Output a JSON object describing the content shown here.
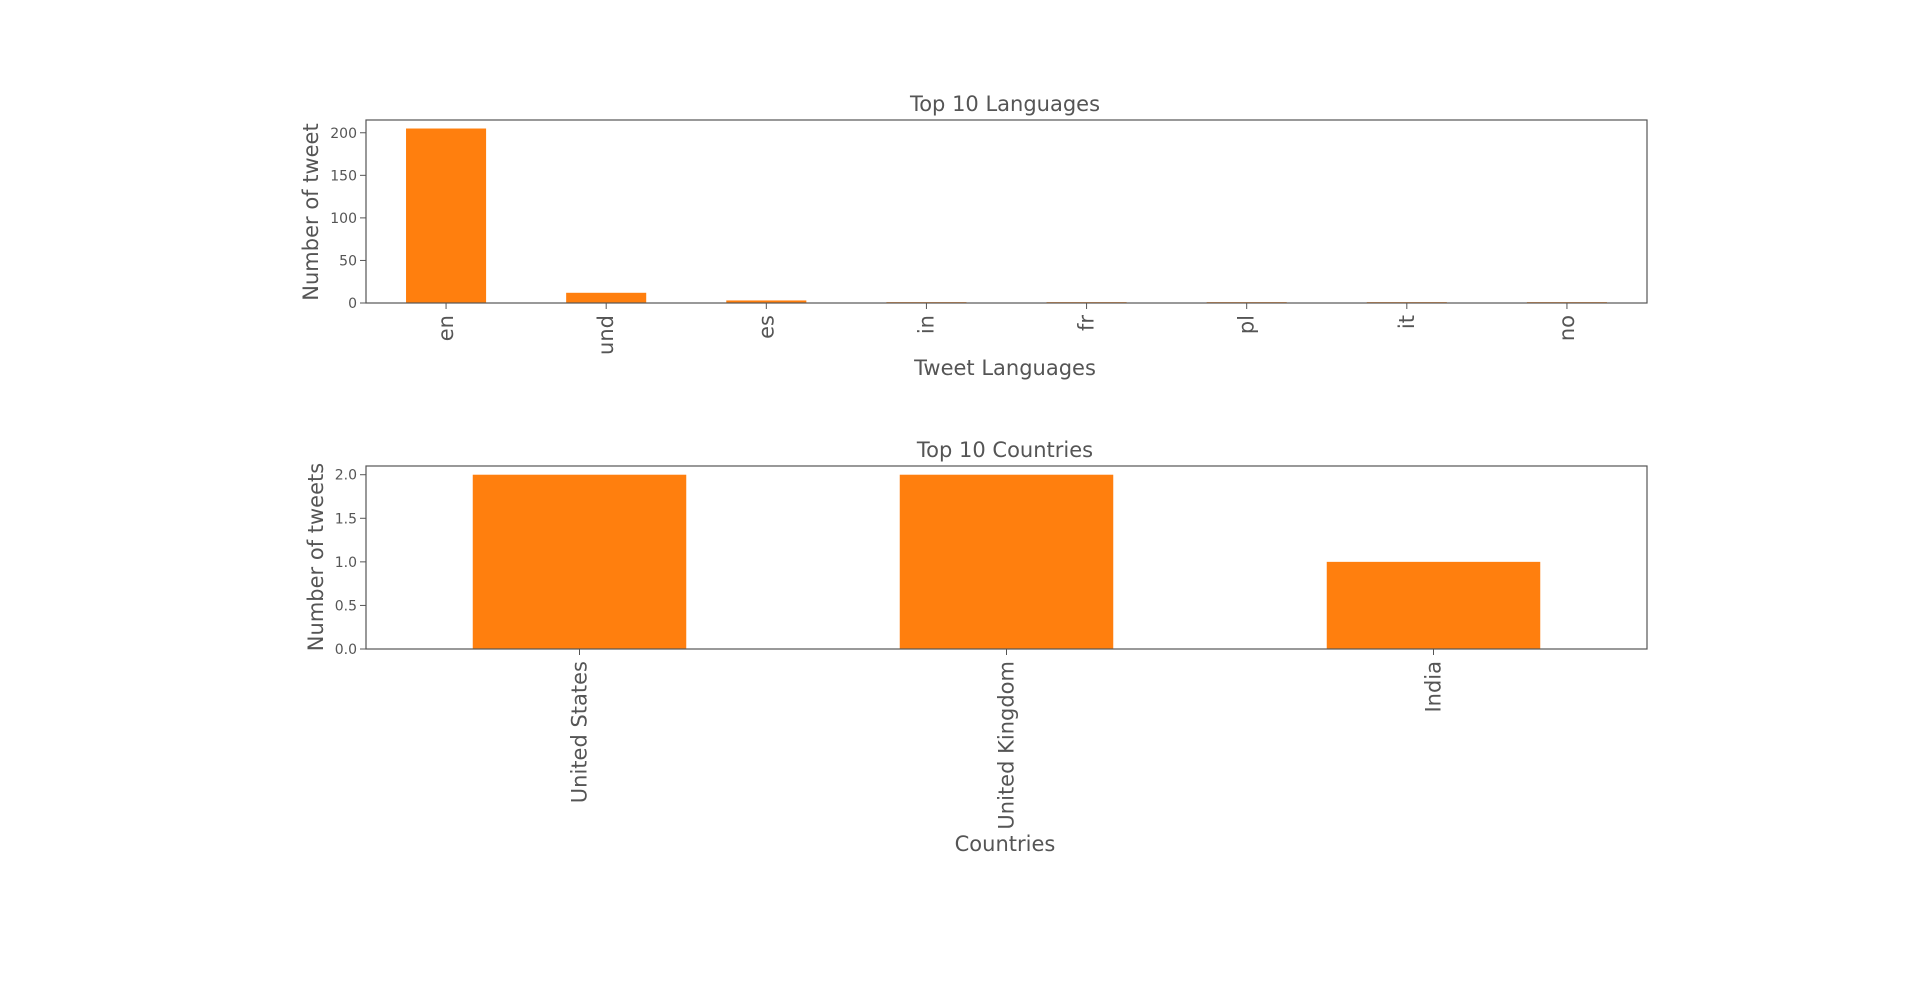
{
  "colors": {
    "bar": "#ff7f0e",
    "text": "#555555",
    "frame": "#555555"
  },
  "chart_data": [
    {
      "type": "bar",
      "title": "Top 10 Languages",
      "xlabel": "Tweet Languages",
      "ylabel": "Number of tweet",
      "categories": [
        "en",
        "und",
        "es",
        "in",
        "fr",
        "pl",
        "it",
        "no"
      ],
      "values": [
        205,
        12,
        3,
        1,
        1,
        1,
        1,
        1
      ],
      "ylim": [
        0,
        215
      ],
      "yticks": [
        0,
        50,
        100,
        150,
        200
      ],
      "ytick_labels": [
        "0",
        "50",
        "100",
        "150",
        "200"
      ],
      "grid": false,
      "legend": "none"
    },
    {
      "type": "bar",
      "title": "Top 10 Countries",
      "xlabel": "Countries",
      "ylabel": "Number of tweets",
      "categories": [
        "United States",
        "United Kingdom",
        "India"
      ],
      "values": [
        2,
        2,
        1
      ],
      "ylim": [
        0,
        2.1
      ],
      "yticks": [
        0,
        0.5,
        1,
        1.5,
        2
      ],
      "ytick_labels": [
        "0.0",
        "0.5",
        "1.0",
        "1.5",
        "2.0"
      ],
      "grid": false,
      "legend": "none"
    }
  ]
}
